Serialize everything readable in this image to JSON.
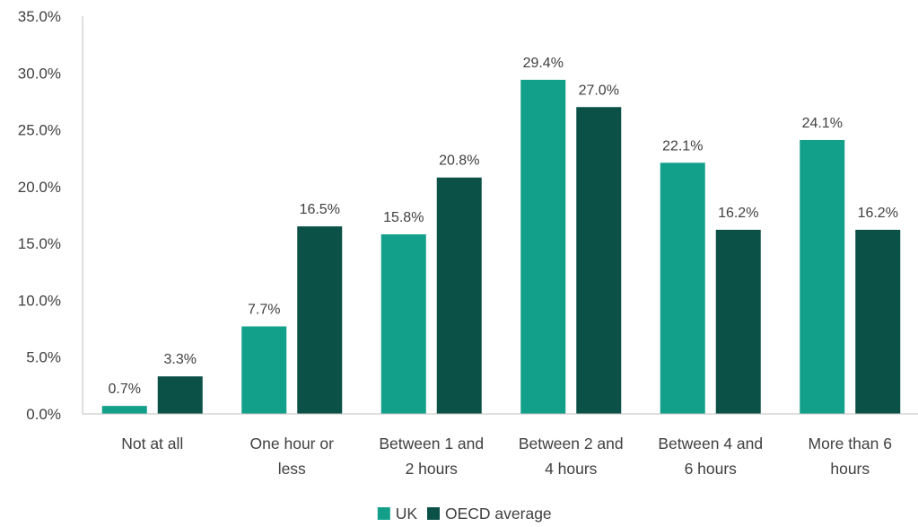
{
  "chart_data": {
    "type": "bar",
    "categories": [
      [
        "Not at all"
      ],
      [
        "One hour or",
        "less"
      ],
      [
        "Between 1 and",
        "2 hours"
      ],
      [
        "Between 2 and",
        "4 hours"
      ],
      [
        "Between 4 and",
        "6 hours"
      ],
      [
        "More than 6",
        "hours"
      ]
    ],
    "series": [
      {
        "name": "UK",
        "color": "#13a08a",
        "values": [
          0.7,
          7.7,
          15.8,
          29.4,
          22.1,
          24.1
        ],
        "labels": [
          "0.7%",
          "7.7%",
          "15.8%",
          "29.4%",
          "22.1%",
          "24.1%"
        ]
      },
      {
        "name": "OECD average",
        "color": "#0b5147",
        "values": [
          3.3,
          16.5,
          20.8,
          27.0,
          16.2,
          16.2
        ],
        "labels": [
          "3.3%",
          "16.5%",
          "20.8%",
          "27.0%",
          "16.2%",
          "16.2%"
        ]
      }
    ],
    "ylim": [
      0,
      35
    ],
    "yticks": [
      {
        "value": 0,
        "label": "0.0%"
      },
      {
        "value": 5,
        "label": "5.0%"
      },
      {
        "value": 10,
        "label": "10.0%"
      },
      {
        "value": 15,
        "label": "15.0%"
      },
      {
        "value": 20,
        "label": "20.0%"
      },
      {
        "value": 25,
        "label": "25.0%"
      },
      {
        "value": 30,
        "label": "30.0%"
      },
      {
        "value": 35,
        "label": "35.0%"
      }
    ],
    "grid": false,
    "legend": "bottom-center",
    "axis_color": "#bfbfbf"
  }
}
